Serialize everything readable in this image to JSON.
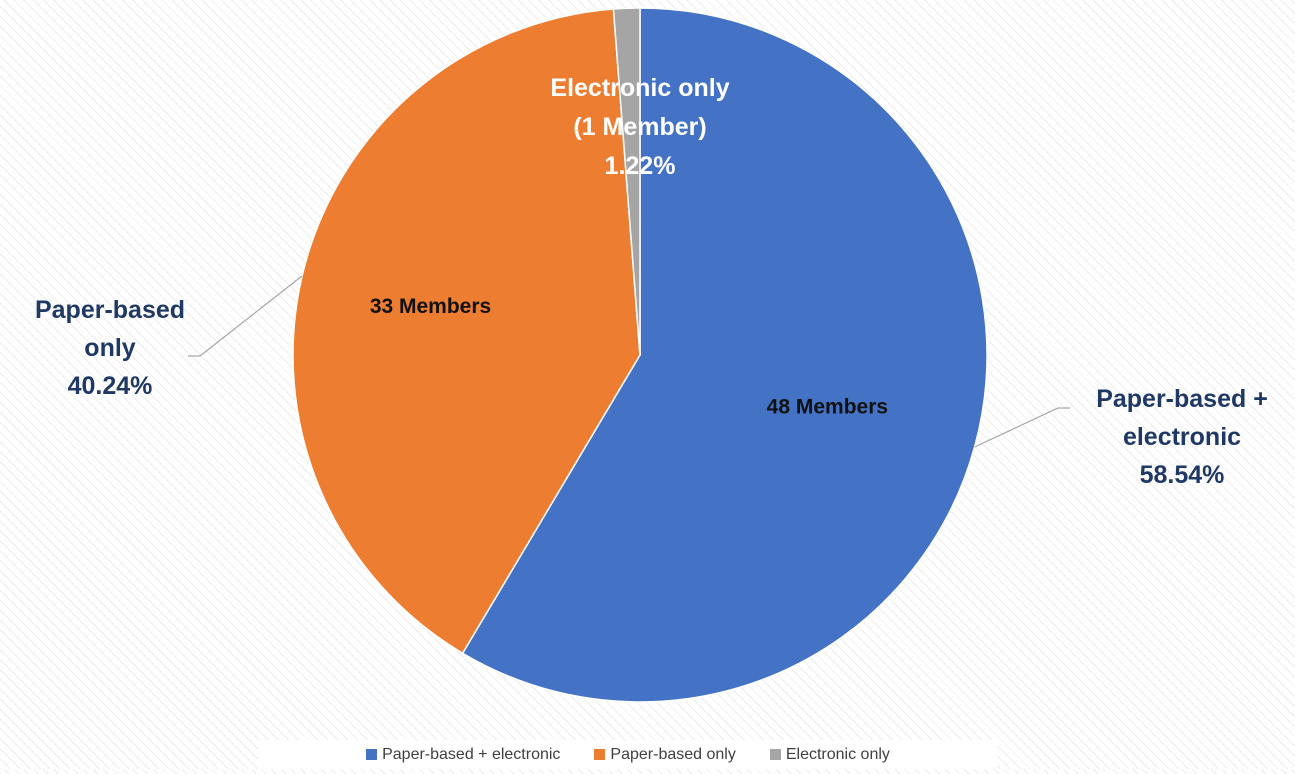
{
  "chart_data": {
    "type": "pie",
    "categories": [
      "Paper-based + electronic",
      "Paper-based only",
      "Electronic only"
    ],
    "values": [
      58.54,
      40.24,
      1.22
    ],
    "counts": [
      48,
      33,
      1
    ],
    "colors": [
      "#4472C4",
      "#ED7D31",
      "#A5A5A5"
    ],
    "inner_labels": [
      "48 Members",
      "33 Members",
      ""
    ],
    "outer_labels": [
      [
        "Paper-based +",
        "electronic",
        "58.54%"
      ],
      [
        "Paper-based",
        "only",
        "40.24%"
      ],
      [
        "Electronic only",
        "(1 Member)",
        "1.22%"
      ]
    ],
    "legend": {
      "position": "bottom",
      "entries": [
        "Paper-based + electronic",
        "Paper-based only",
        "Electronic only"
      ]
    }
  }
}
